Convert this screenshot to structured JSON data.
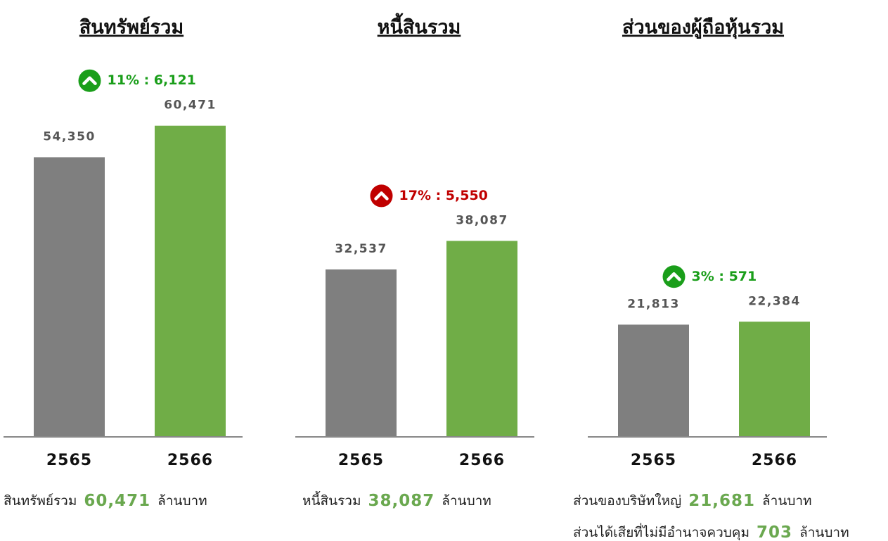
{
  "chart_data": [
    {
      "type": "bar",
      "title": "สินทรัพย์รวม",
      "categories": [
        "2565",
        "2566"
      ],
      "values": [
        54350,
        60471
      ],
      "value_labels": [
        "54,350",
        "60,471"
      ],
      "colors": [
        "#7f7f7f",
        "#70ad47"
      ],
      "ylim": [
        0,
        70000
      ],
      "change": {
        "label": "11% : 6,121",
        "color": "#1a9e1a"
      },
      "notes": [
        {
          "label": "สินทรัพย์รวม",
          "value": "60,471",
          "unit": "ล้านบาท"
        }
      ]
    },
    {
      "type": "bar",
      "title": "หนี้สินรวม",
      "categories": [
        "2565",
        "2566"
      ],
      "values": [
        32537,
        38087
      ],
      "value_labels": [
        "32,537",
        "38,087"
      ],
      "colors": [
        "#7f7f7f",
        "#70ad47"
      ],
      "ylim": [
        0,
        70000
      ],
      "change": {
        "label": "17% : 5,550",
        "color": "#c00000"
      },
      "notes": [
        {
          "label": "หนี้สินรวม",
          "value": "38,087",
          "unit": "ล้านบาท"
        }
      ]
    },
    {
      "type": "bar",
      "title": "ส่วนของผู้ถือหุ้นรวม",
      "categories": [
        "2565",
        "2566"
      ],
      "values": [
        21813,
        22384
      ],
      "value_labels": [
        "21,813",
        "22,384"
      ],
      "colors": [
        "#7f7f7f",
        "#70ad47"
      ],
      "ylim": [
        0,
        70000
      ],
      "change": {
        "label": "3% : 571",
        "color": "#1a9e1a"
      },
      "notes": [
        {
          "label": "ส่วนของบริษัทใหญ่",
          "value": "21,681",
          "unit": "ล้านบาท"
        },
        {
          "label": "ส่วนได้เสียที่ไม่มีอำนาจควบคุม",
          "value": "703",
          "unit": "ล้านบาท"
        }
      ]
    }
  ]
}
